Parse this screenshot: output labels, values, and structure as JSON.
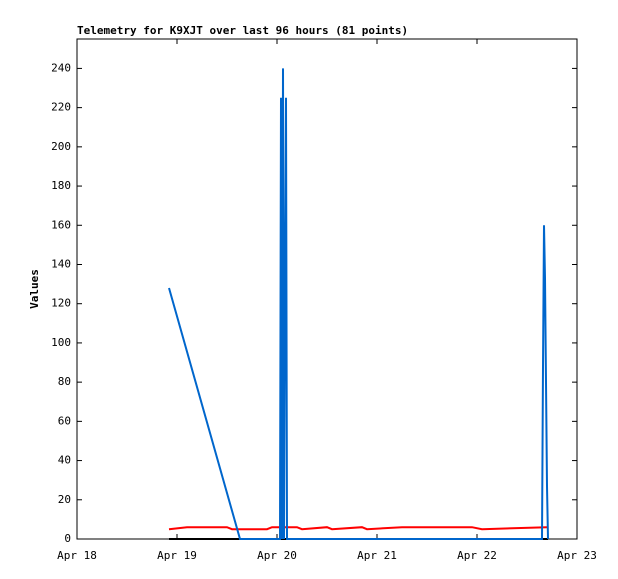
{
  "chart_data": {
    "type": "line",
    "title": "Telemetry for K9XJT over last 96 hours (81 points)",
    "y_label": "Values",
    "xlim": [
      0,
      5
    ],
    "xticks": [
      {
        "value": 0,
        "label": "Apr 18"
      },
      {
        "value": 1,
        "label": "Apr 19"
      },
      {
        "value": 2,
        "label": "Apr 20"
      },
      {
        "value": 3,
        "label": "Apr 21"
      },
      {
        "value": 4,
        "label": "Apr 22"
      },
      {
        "value": 5,
        "label": "Apr 23"
      }
    ],
    "ylim": [
      0,
      255
    ],
    "yticks": [
      0,
      20,
      40,
      60,
      80,
      100,
      120,
      140,
      160,
      180,
      200,
      220,
      240
    ],
    "series": [
      {
        "color": "#000000",
        "x": [
          0.92,
          4.71
        ],
        "values": [
          0,
          0
        ]
      },
      {
        "color": "#ff0000",
        "x": [
          0.92,
          1.1,
          1.5,
          1.55,
          1.9,
          1.95,
          2.2,
          2.25,
          2.5,
          2.55,
          2.85,
          2.9,
          3.25,
          3.95,
          4.05,
          4.7
        ],
        "values": [
          5,
          6,
          6,
          5,
          5,
          6,
          6,
          5,
          6,
          5,
          6,
          5,
          6,
          6,
          5,
          6
        ]
      },
      {
        "color": "#0066cc",
        "x": [
          0.92,
          1.63,
          2.03,
          2.04,
          2.05,
          2.06,
          2.07,
          2.08,
          2.09,
          2.1,
          4.65,
          4.66,
          4.67,
          4.68,
          4.69,
          4.7,
          4.71
        ],
        "values": [
          128,
          0,
          0,
          225,
          0,
          240,
          0,
          128,
          225,
          0,
          0,
          88,
          160,
          133,
          80,
          27,
          0
        ]
      }
    ]
  }
}
